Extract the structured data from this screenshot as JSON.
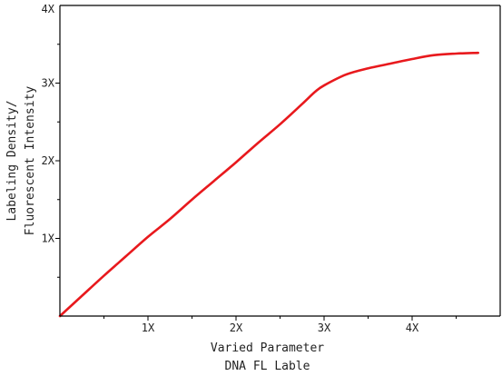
{
  "chart_data": {
    "type": "line",
    "title": "",
    "xlabel_lines": [
      "Varied Parameter",
      "DNA FL Lable"
    ],
    "ylabel_lines": [
      "Labeling Density/",
      "Fluorescent Intensity"
    ],
    "xlim": [
      0,
      5
    ],
    "ylim": [
      0,
      4
    ],
    "x_ticks": [
      {
        "value": 1,
        "label": "1X"
      },
      {
        "value": 2,
        "label": "2X"
      },
      {
        "value": 3,
        "label": "3X"
      },
      {
        "value": 4,
        "label": "4X"
      }
    ],
    "y_ticks": [
      {
        "value": 1,
        "label": "1X"
      },
      {
        "value": 2,
        "label": "2X"
      },
      {
        "value": 3,
        "label": "3X"
      },
      {
        "value": 4,
        "label": "4X"
      }
    ],
    "grid": false,
    "series": [
      {
        "color": "#e8191d",
        "x": [
          0,
          0.25,
          0.5,
          0.75,
          1.0,
          1.25,
          1.5,
          1.75,
          2.0,
          2.25,
          2.5,
          2.75,
          2.9,
          3.0,
          3.25,
          3.5,
          3.75,
          4.0,
          4.25,
          4.5,
          4.75
        ],
        "y": [
          0,
          0.26,
          0.52,
          0.77,
          1.02,
          1.25,
          1.5,
          1.74,
          1.98,
          2.23,
          2.47,
          2.73,
          2.89,
          2.97,
          3.11,
          3.19,
          3.25,
          3.31,
          3.36,
          3.38,
          3.39
        ]
      }
    ]
  }
}
